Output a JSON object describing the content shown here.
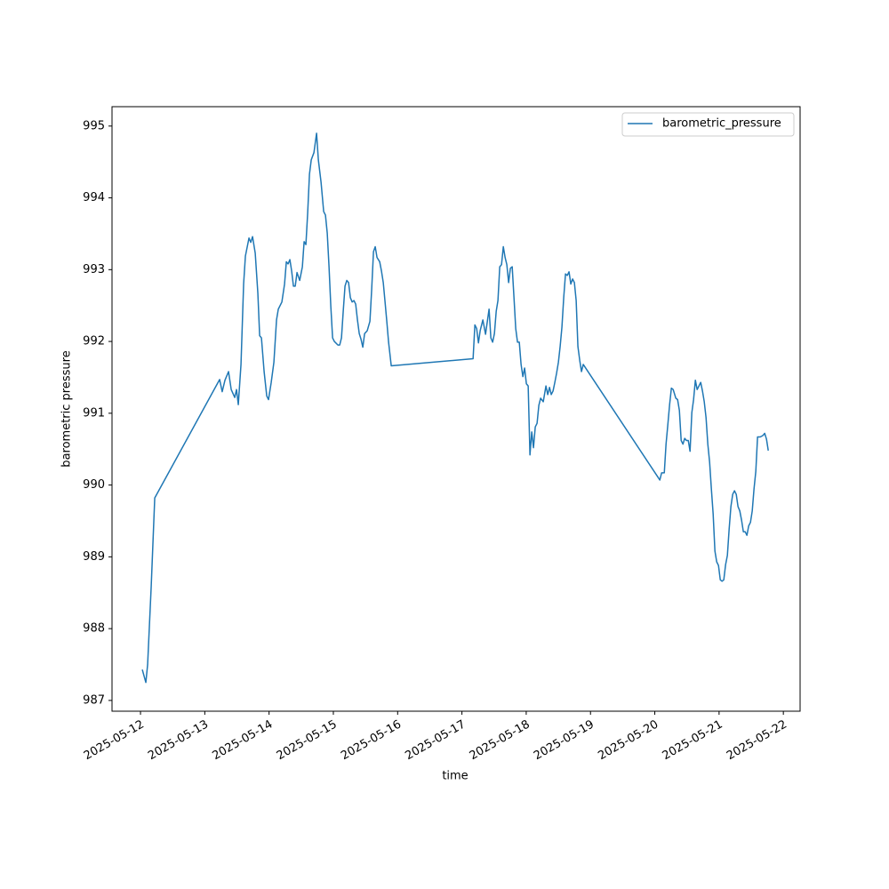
{
  "chart_data": {
    "type": "line",
    "xlabel": "time",
    "ylabel": "barometric pressure",
    "legend": "upper right",
    "xlim": [
      "2025-05-11 13:22",
      "2025-05-22 06:15"
    ],
    "xticks": [
      "2025-05-12",
      "2025-05-13",
      "2025-05-14",
      "2025-05-15",
      "2025-05-16",
      "2025-05-17",
      "2025-05-18",
      "2025-05-19",
      "2025-05-20",
      "2025-05-21",
      "2025-05-22"
    ],
    "ylim": [
      986.85,
      995.27
    ],
    "yticks": [
      987,
      988,
      989,
      990,
      991,
      992,
      993,
      994,
      995
    ],
    "x": [
      "2025-05-12 00:40",
      "2025-05-12 02:00",
      "2025-05-12 02:40",
      "2025-05-12 04:00",
      "2025-05-12 05:19",
      "2025-05-13 05:33",
      "2025-05-13 06:30",
      "2025-05-13 07:32",
      "2025-05-13 08:52",
      "2025-05-13 09:52",
      "2025-05-13 11:11",
      "2025-05-13 11:51",
      "2025-05-13 12:31",
      "2025-05-13 13:31",
      "2025-05-13 14:30",
      "2025-05-13 15:10",
      "2025-05-13 16:30",
      "2025-05-13 17:10",
      "2025-05-13 17:50",
      "2025-05-13 18:50",
      "2025-05-13 19:49",
      "2025-05-13 20:29",
      "2025-05-13 21:09",
      "2025-05-13 22:09",
      "2025-05-13 23:08",
      "2025-05-13 23:48",
      "2025-05-14 00:48",
      "2025-05-14 01:48",
      "2025-05-14 02:47",
      "2025-05-14 03:27",
      "2025-05-14 04:47",
      "2025-05-14 05:47",
      "2025-05-14 06:27",
      "2025-05-14 07:07",
      "2025-05-14 07:46",
      "2025-05-14 08:26",
      "2025-05-14 09:06",
      "2025-05-14 09:46",
      "2025-05-14 10:26",
      "2025-05-14 11:26",
      "2025-05-14 12:26",
      "2025-05-14 13:05",
      "2025-05-14 13:45",
      "2025-05-14 14:25",
      "2025-05-14 15:05",
      "2025-05-14 15:45",
      "2025-05-14 16:45",
      "2025-05-14 17:44",
      "2025-05-14 18:24",
      "2025-05-14 19:24",
      "2025-05-14 20:23",
      "2025-05-14 21:03",
      "2025-05-14 21:43",
      "2025-05-14 22:23",
      "2025-05-14 23:03",
      "2025-05-14 23:43",
      "2025-05-15 00:22",
      "2025-05-15 01:42",
      "2025-05-15 02:22",
      "2025-05-15 03:02",
      "2025-05-15 03:41",
      "2025-05-15 04:21",
      "2025-05-15 05:01",
      "2025-05-15 05:41",
      "2025-05-15 06:21",
      "2025-05-15 07:01",
      "2025-05-15 07:41",
      "2025-05-15 08:20",
      "2025-05-15 09:00",
      "2025-05-15 09:40",
      "2025-05-15 10:20",
      "2025-05-15 11:00",
      "2025-05-15 11:40",
      "2025-05-15 12:39",
      "2025-05-15 13:39",
      "2025-05-15 14:19",
      "2025-05-15 14:59",
      "2025-05-15 15:38",
      "2025-05-15 16:18",
      "2025-05-15 17:18",
      "2025-05-15 17:58",
      "2025-05-15 18:38",
      "2025-05-15 19:18",
      "2025-05-15 19:57",
      "2025-05-15 20:37",
      "2025-05-15 21:37",
      "2025-05-17 04:10",
      "2025-05-17 04:50",
      "2025-05-17 05:30",
      "2025-05-17 06:10",
      "2025-05-17 06:49",
      "2025-05-17 07:49",
      "2025-05-17 08:49",
      "2025-05-17 09:29",
      "2025-05-17 10:08",
      "2025-05-17 10:48",
      "2025-05-17 11:28",
      "2025-05-17 12:08",
      "2025-05-17 12:48",
      "2025-05-17 13:27",
      "2025-05-17 14:07",
      "2025-05-17 14:47",
      "2025-05-17 15:27",
      "2025-05-17 16:07",
      "2025-05-17 16:46",
      "2025-05-17 17:26",
      "2025-05-17 18:06",
      "2025-05-17 18:46",
      "2025-05-17 19:26",
      "2025-05-17 20:05",
      "2025-05-17 20:45",
      "2025-05-17 21:25",
      "2025-05-17 22:05",
      "2025-05-17 22:45",
      "2025-05-17 23:24",
      "2025-05-18 00:04",
      "2025-05-18 00:44",
      "2025-05-18 01:24",
      "2025-05-18 02:04",
      "2025-05-18 02:43",
      "2025-05-18 03:23",
      "2025-05-18 04:03",
      "2025-05-18 04:43",
      "2025-05-18 05:23",
      "2025-05-18 06:22",
      "2025-05-18 07:22",
      "2025-05-18 08:02",
      "2025-05-18 08:42",
      "2025-05-18 09:21",
      "2025-05-18 10:01",
      "2025-05-18 10:41",
      "2025-05-18 11:21",
      "2025-05-18 12:01",
      "2025-05-18 12:40",
      "2025-05-18 13:20",
      "2025-05-18 14:00",
      "2025-05-18 14:40",
      "2025-05-18 15:20",
      "2025-05-18 15:59",
      "2025-05-18 16:39",
      "2025-05-18 17:19",
      "2025-05-18 17:59",
      "2025-05-18 18:39",
      "2025-05-18 19:18",
      "2025-05-18 19:58",
      "2025-05-18 20:38",
      "2025-05-18 21:18",
      "2025-05-20 01:53",
      "2025-05-20 02:33",
      "2025-05-20 03:33",
      "2025-05-20 04:12",
      "2025-05-20 04:52",
      "2025-05-20 05:32",
      "2025-05-20 06:12",
      "2025-05-20 06:52",
      "2025-05-20 07:51",
      "2025-05-20 08:31",
      "2025-05-20 09:11",
      "2025-05-20 09:51",
      "2025-05-20 10:31",
      "2025-05-20 11:10",
      "2025-05-20 11:50",
      "2025-05-20 12:30",
      "2025-05-20 13:10",
      "2025-05-20 13:50",
      "2025-05-20 14:29",
      "2025-05-20 15:09",
      "2025-05-20 15:49",
      "2025-05-20 16:29",
      "2025-05-20 17:09",
      "2025-05-20 17:48",
      "2025-05-20 18:28",
      "2025-05-20 19:08",
      "2025-05-20 19:48",
      "2025-05-20 20:28",
      "2025-05-20 21:07",
      "2025-05-20 21:47",
      "2025-05-20 22:27",
      "2025-05-20 23:07",
      "2025-05-20 23:47",
      "2025-05-21 00:27",
      "2025-05-21 01:06",
      "2025-05-21 01:46",
      "2025-05-21 02:26",
      "2025-05-21 03:06",
      "2025-05-21 03:45",
      "2025-05-21 04:25",
      "2025-05-21 05:05",
      "2025-05-21 05:45",
      "2025-05-21 06:25",
      "2025-05-21 07:04",
      "2025-05-21 07:44",
      "2025-05-21 08:24",
      "2025-05-21 09:04",
      "2025-05-21 09:44",
      "2025-05-21 10:24",
      "2025-05-21 11:03",
      "2025-05-21 11:43",
      "2025-05-21 12:23",
      "2025-05-21 13:03",
      "2025-05-21 13:43",
      "2025-05-21 14:22",
      "2025-05-21 15:22",
      "2025-05-21 16:22",
      "2025-05-21 17:02",
      "2025-05-21 17:42",
      "2025-05-21 18:22"
    ],
    "series": [
      {
        "name": "barometric_pressure",
        "color": "#1f77b4",
        "values": [
          987.43,
          987.25,
          987.5,
          988.59,
          989.82,
          991.47,
          991.3,
          991.46,
          991.58,
          991.33,
          991.22,
          991.33,
          991.12,
          991.68,
          992.8,
          993.19,
          993.44,
          993.38,
          993.46,
          993.23,
          992.67,
          992.08,
          992.05,
          991.58,
          991.24,
          991.19,
          991.43,
          991.71,
          992.3,
          992.45,
          992.55,
          992.8,
          993.11,
          993.08,
          993.14,
          992.98,
          992.77,
          992.77,
          992.96,
          992.85,
          993.04,
          993.39,
          993.35,
          993.79,
          994.33,
          994.53,
          994.63,
          994.9,
          994.53,
          994.22,
          993.81,
          993.76,
          993.51,
          993.04,
          992.49,
          992.05,
          992.0,
          991.95,
          991.95,
          992.05,
          992.42,
          992.77,
          992.85,
          992.82,
          992.61,
          992.55,
          992.57,
          992.52,
          992.3,
          992.11,
          992.03,
          991.92,
          992.11,
          992.15,
          992.28,
          992.73,
          993.25,
          993.32,
          993.17,
          993.11,
          992.98,
          992.82,
          992.55,
          992.28,
          991.99,
          991.66,
          991.76,
          992.23,
          992.18,
          991.98,
          992.15,
          992.3,
          992.1,
          992.28,
          992.45,
          992.05,
          991.99,
          992.11,
          992.42,
          992.57,
          993.04,
          993.07,
          993.32,
          993.17,
          993.07,
          992.82,
          993.02,
          993.04,
          992.61,
          992.18,
          991.99,
          991.99,
          991.68,
          991.51,
          991.63,
          991.41,
          991.38,
          990.42,
          990.74,
          990.52,
          990.81,
          990.86,
          991.11,
          991.21,
          991.16,
          991.38,
          991.26,
          991.36,
          991.26,
          991.31,
          991.43,
          991.56,
          991.71,
          991.93,
          992.2,
          992.61,
          992.94,
          992.92,
          992.97,
          992.8,
          992.87,
          992.82,
          992.57,
          991.93,
          991.74,
          991.58,
          991.68,
          990.07,
          990.17,
          990.17,
          990.57,
          990.84,
          991.12,
          991.35,
          991.33,
          991.21,
          991.19,
          991.04,
          990.62,
          990.57,
          990.65,
          990.62,
          990.62,
          990.47,
          991.01,
          991.19,
          991.46,
          991.33,
          991.38,
          991.43,
          991.31,
          991.16,
          990.94,
          990.57,
          990.32,
          989.95,
          989.6,
          989.08,
          988.93,
          988.88,
          988.68,
          988.66,
          988.68,
          988.89,
          989.02,
          989.38,
          989.7,
          989.87,
          989.92,
          989.87,
          989.7,
          989.64,
          989.51,
          989.35,
          989.35,
          989.3,
          989.43,
          989.48,
          989.64,
          989.95,
          990.19,
          990.67,
          990.67,
          990.69,
          990.72,
          990.64,
          990.48
        ]
      }
    ]
  }
}
